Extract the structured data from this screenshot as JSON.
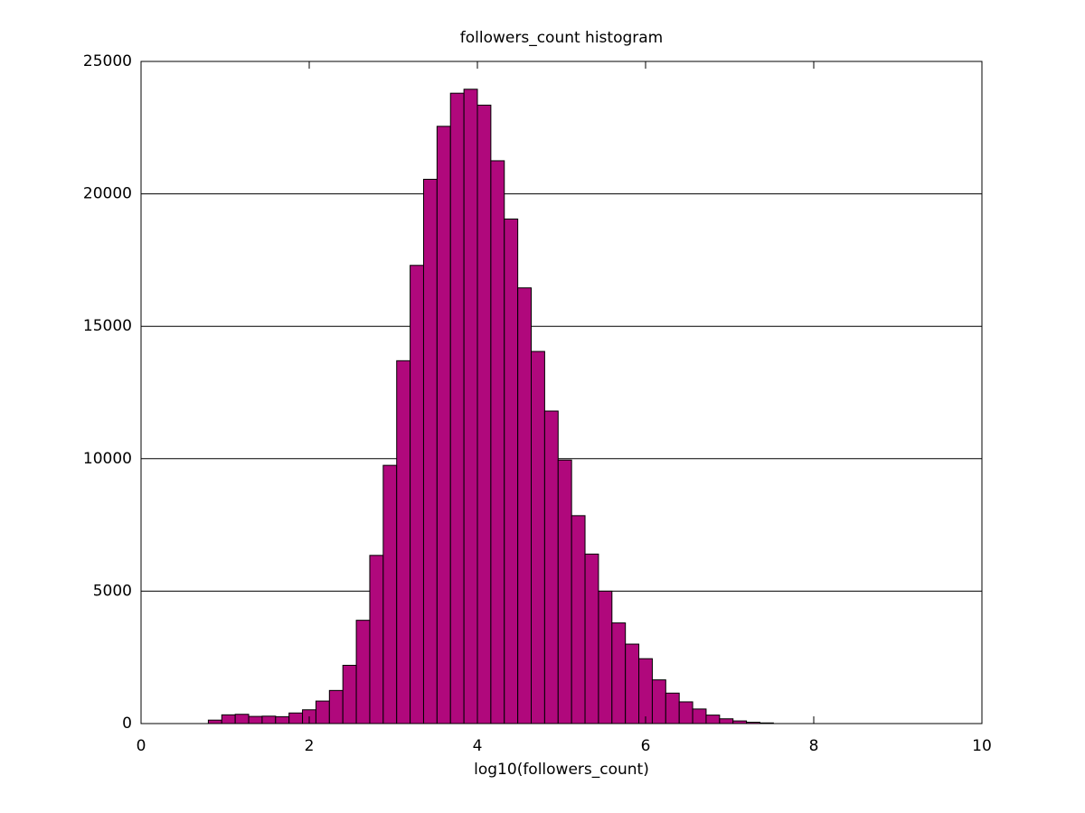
{
  "chart_data": {
    "type": "histogram",
    "title": "followers_count histogram",
    "x_label": "log10(followers_count)",
    "bins": [
      0.8,
      0.96,
      1.12,
      1.28,
      1.44,
      1.6,
      1.76,
      1.92,
      2.08,
      2.24,
      2.4,
      2.56,
      2.72,
      2.88,
      3.04,
      3.2,
      3.36,
      3.52,
      3.68,
      3.84,
      4.0,
      4.16,
      4.32,
      4.48,
      4.64,
      4.8,
      4.96,
      5.12,
      5.28,
      5.44,
      5.6,
      5.76,
      5.92,
      6.08,
      6.24,
      6.4,
      6.56,
      6.72,
      6.88,
      7.04,
      7.2,
      7.36,
      7.52
    ],
    "counts": [
      130,
      330,
      350,
      270,
      280,
      260,
      400,
      520,
      850,
      1250,
      2200,
      3900,
      6350,
      9750,
      13700,
      17300,
      20550,
      22550,
      23800,
      23950,
      23350,
      21250,
      19050,
      16450,
      14050,
      11800,
      9950,
      7850,
      6400,
      5000,
      3800,
      3000,
      2450,
      1650,
      1150,
      820,
      550,
      320,
      180,
      100,
      50,
      25
    ],
    "color": "#b0087c",
    "xlim": [
      0,
      10
    ],
    "xticks": [
      0,
      2,
      4,
      6,
      8,
      10
    ],
    "ylim": [
      0,
      25000
    ],
    "yticks": [
      0,
      5000,
      10000,
      15000,
      20000,
      25000
    ],
    "grid": true
  }
}
